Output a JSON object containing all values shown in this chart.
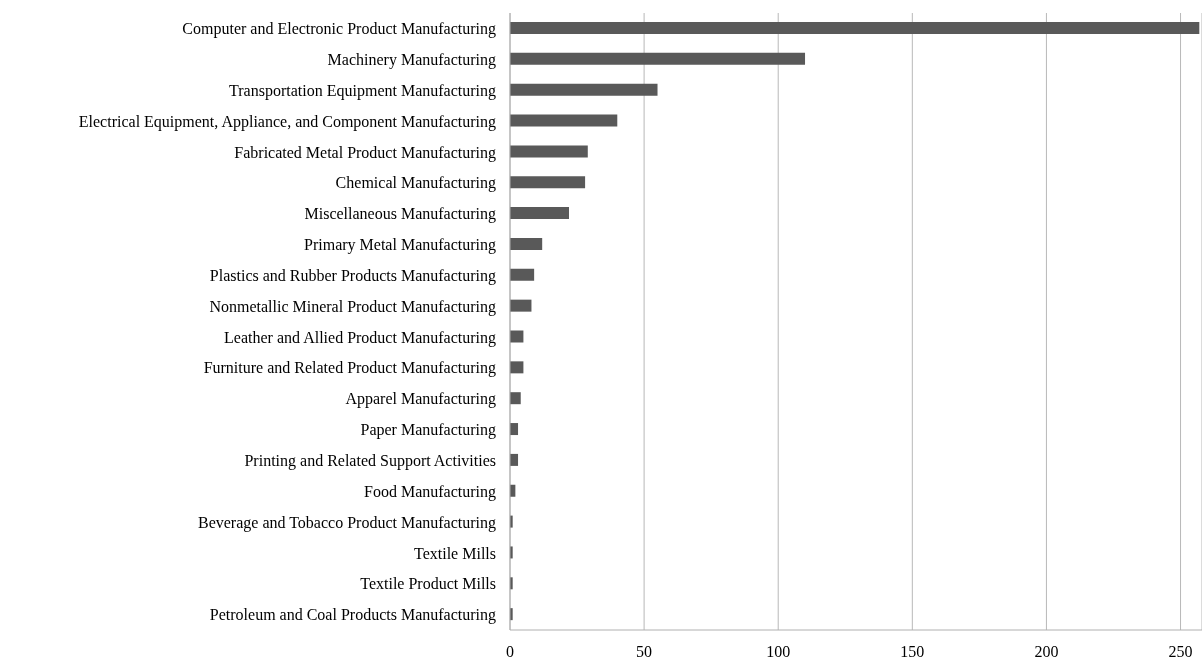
{
  "chart_data": {
    "type": "bar",
    "orientation": "horizontal",
    "categories": [
      "Computer and Electronic Product Manufacturing",
      "Machinery Manufacturing",
      "Transportation Equipment Manufacturing",
      "Electrical Equipment, Appliance, and Component Manufacturing",
      "Fabricated Metal Product Manufacturing",
      "Chemical Manufacturing",
      "Miscellaneous Manufacturing",
      "Primary Metal Manufacturing",
      "Plastics and Rubber Products Manufacturing",
      "Nonmetallic Mineral Product Manufacturing",
      "Leather and Allied Product Manufacturing",
      "Furniture and Related Product Manufacturing",
      "Apparel Manufacturing",
      "Paper Manufacturing",
      "Printing and Related Support Activities",
      "Food Manufacturing",
      "Beverage and Tobacco Product Manufacturing",
      "Textile Mills",
      "Textile Product Mills",
      "Petroleum and Coal Products Manufacturing"
    ],
    "values": [
      257,
      110,
      55,
      40,
      29,
      28,
      22,
      12,
      9,
      8,
      5,
      5,
      4,
      3,
      3,
      2,
      1,
      1,
      1,
      1
    ],
    "color": "#595959",
    "xlim": [
      0,
      258
    ],
    "xticks": [
      0,
      50,
      100,
      150,
      200,
      250
    ],
    "grid": "x"
  }
}
